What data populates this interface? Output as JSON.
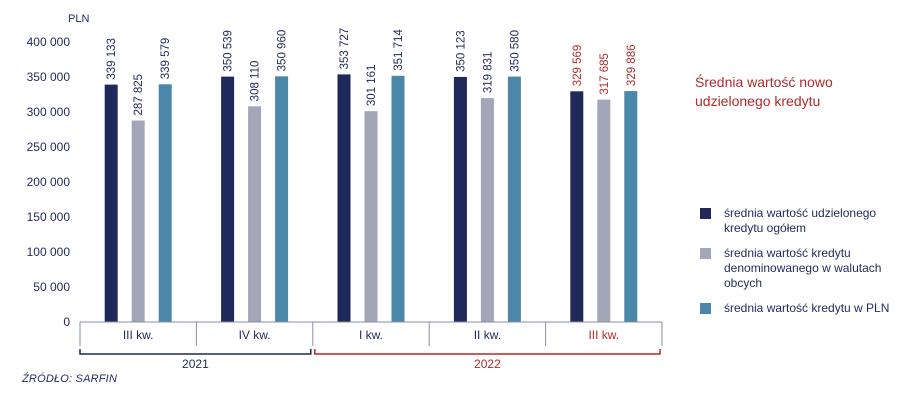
{
  "chart_data": {
    "type": "bar",
    "ylabel": "PLN",
    "ylim": [
      0,
      400000
    ],
    "yticks": [
      0,
      50000,
      100000,
      150000,
      200000,
      250000,
      300000,
      350000,
      400000
    ],
    "ytick_labels": [
      "0",
      "50 000",
      "100 000",
      "150 000",
      "200 000",
      "250 000",
      "300 000",
      "350 000",
      "400 000"
    ],
    "categories": [
      "III kw.",
      "IV kw.",
      "I kw.",
      "II kw.",
      "III kw."
    ],
    "category_highlight": [
      false,
      false,
      false,
      false,
      true
    ],
    "year_groups": [
      {
        "label": "2021",
        "start": 0,
        "end": 1,
        "color": "#1f2a5a"
      },
      {
        "label": "2022",
        "start": 2,
        "end": 4,
        "color": "#b22a2a"
      }
    ],
    "series": [
      {
        "name": "średnia wartość udzielonego kredytu ogółem",
        "color": "#1f2a5a",
        "values": [
          339133,
          350539,
          353727,
          350123,
          329569
        ],
        "labels": [
          "339 133",
          "350 539",
          "353 727",
          "350 123",
          "329 569"
        ]
      },
      {
        "name": "średnia wartość kredytu denominowanego w walutach obcych",
        "color": "#a3a6b8",
        "values": [
          287825,
          308110,
          301161,
          319831,
          317685
        ],
        "labels": [
          "287 825",
          "308 110",
          "301 161",
          "319 831",
          "317 685"
        ]
      },
      {
        "name": "średnia wartość kredytu w PLN",
        "color": "#4a87a8",
        "values": [
          339579,
          350960,
          351714,
          350580,
          329886
        ],
        "labels": [
          "339 579",
          "350 960",
          "351 714",
          "350 580",
          "329 886"
        ]
      }
    ],
    "legend_position": "right",
    "grid": false
  },
  "side_title": "Średnia wartość nowo udzielonego kredytu",
  "colors": {
    "navy": "#1f2a5a",
    "red": "#b22a2a",
    "axis": "#8a8fa6"
  },
  "source": "ŹRÓDŁO: SARFIN"
}
